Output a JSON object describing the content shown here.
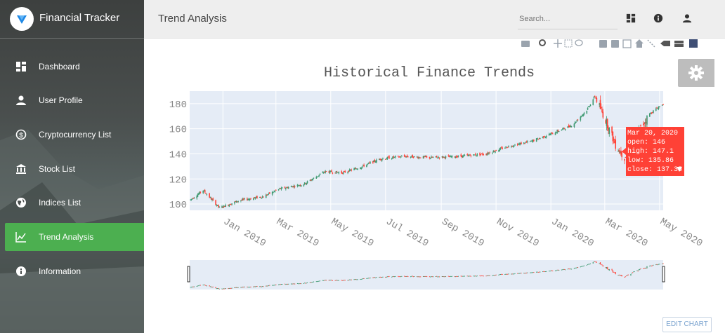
{
  "app": {
    "title": "Financial Tracker"
  },
  "sidebar": {
    "items": [
      {
        "label": "Dashboard",
        "icon": "dashboard-icon"
      },
      {
        "label": "User Profile",
        "icon": "person-icon"
      },
      {
        "label": "Cryptocurrency List",
        "icon": "coin-icon"
      },
      {
        "label": "Stock List",
        "icon": "bank-icon"
      },
      {
        "label": "Indices List",
        "icon": "globe-icon"
      },
      {
        "label": "Trend Analysis",
        "icon": "trend-icon",
        "active": true
      },
      {
        "label": "Information",
        "icon": "info-icon"
      }
    ]
  },
  "header": {
    "title": "Trend Analysis",
    "search_placeholder": "Search..."
  },
  "colors": {
    "accent": "#4caf50",
    "increasing": "#3d9970",
    "decreasing": "#ff4136",
    "plot_bg": "#e5ecf6"
  },
  "edit_chart_label": "EDIT CHART",
  "chart_data": {
    "type": "candlestick",
    "title": "Historical Finance Trends",
    "xlabel": "",
    "ylabel": "",
    "ylim": [
      95,
      190
    ],
    "y_ticks": [
      100,
      120,
      140,
      160,
      180
    ],
    "x_ticks": [
      "Jan 2019",
      "Mar 2019",
      "May 2019",
      "Jul 2019",
      "Sep 2019",
      "Nov 2019",
      "Jan 2020",
      "Mar 2020",
      "May 2020"
    ],
    "x_range": [
      "2018-11-25",
      "2020-05-05"
    ],
    "trend_points": [
      [
        "2018-11-25",
        103
      ],
      [
        "2018-12-10",
        111
      ],
      [
        "2018-12-28",
        97
      ],
      [
        "2019-01-20",
        103
      ],
      [
        "2019-02-15",
        106
      ],
      [
        "2019-03-05",
        112
      ],
      [
        "2019-04-01",
        116
      ],
      [
        "2019-04-25",
        126
      ],
      [
        "2019-05-15",
        125
      ],
      [
        "2019-06-05",
        130
      ],
      [
        "2019-06-25",
        136
      ],
      [
        "2019-07-20",
        138
      ],
      [
        "2019-08-20",
        137
      ],
      [
        "2019-09-20",
        138
      ],
      [
        "2019-10-20",
        140
      ],
      [
        "2019-11-15",
        146
      ],
      [
        "2019-12-10",
        150
      ],
      [
        "2020-01-05",
        157
      ],
      [
        "2020-01-25",
        163
      ],
      [
        "2020-02-10",
        175
      ],
      [
        "2020-02-19",
        186
      ],
      [
        "2020-03-03",
        165
      ],
      [
        "2020-03-13",
        147
      ],
      [
        "2020-03-23",
        137
      ],
      [
        "2020-04-05",
        155
      ],
      [
        "2020-04-20",
        172
      ],
      [
        "2020-05-05",
        180
      ]
    ],
    "hover": {
      "date": "Mar 20, 2020",
      "open": "open: 146",
      "high": "high: 147.1",
      "low": "low: 135.86",
      "close": "close: 137.35"
    },
    "grid": true,
    "range_slider": true
  }
}
